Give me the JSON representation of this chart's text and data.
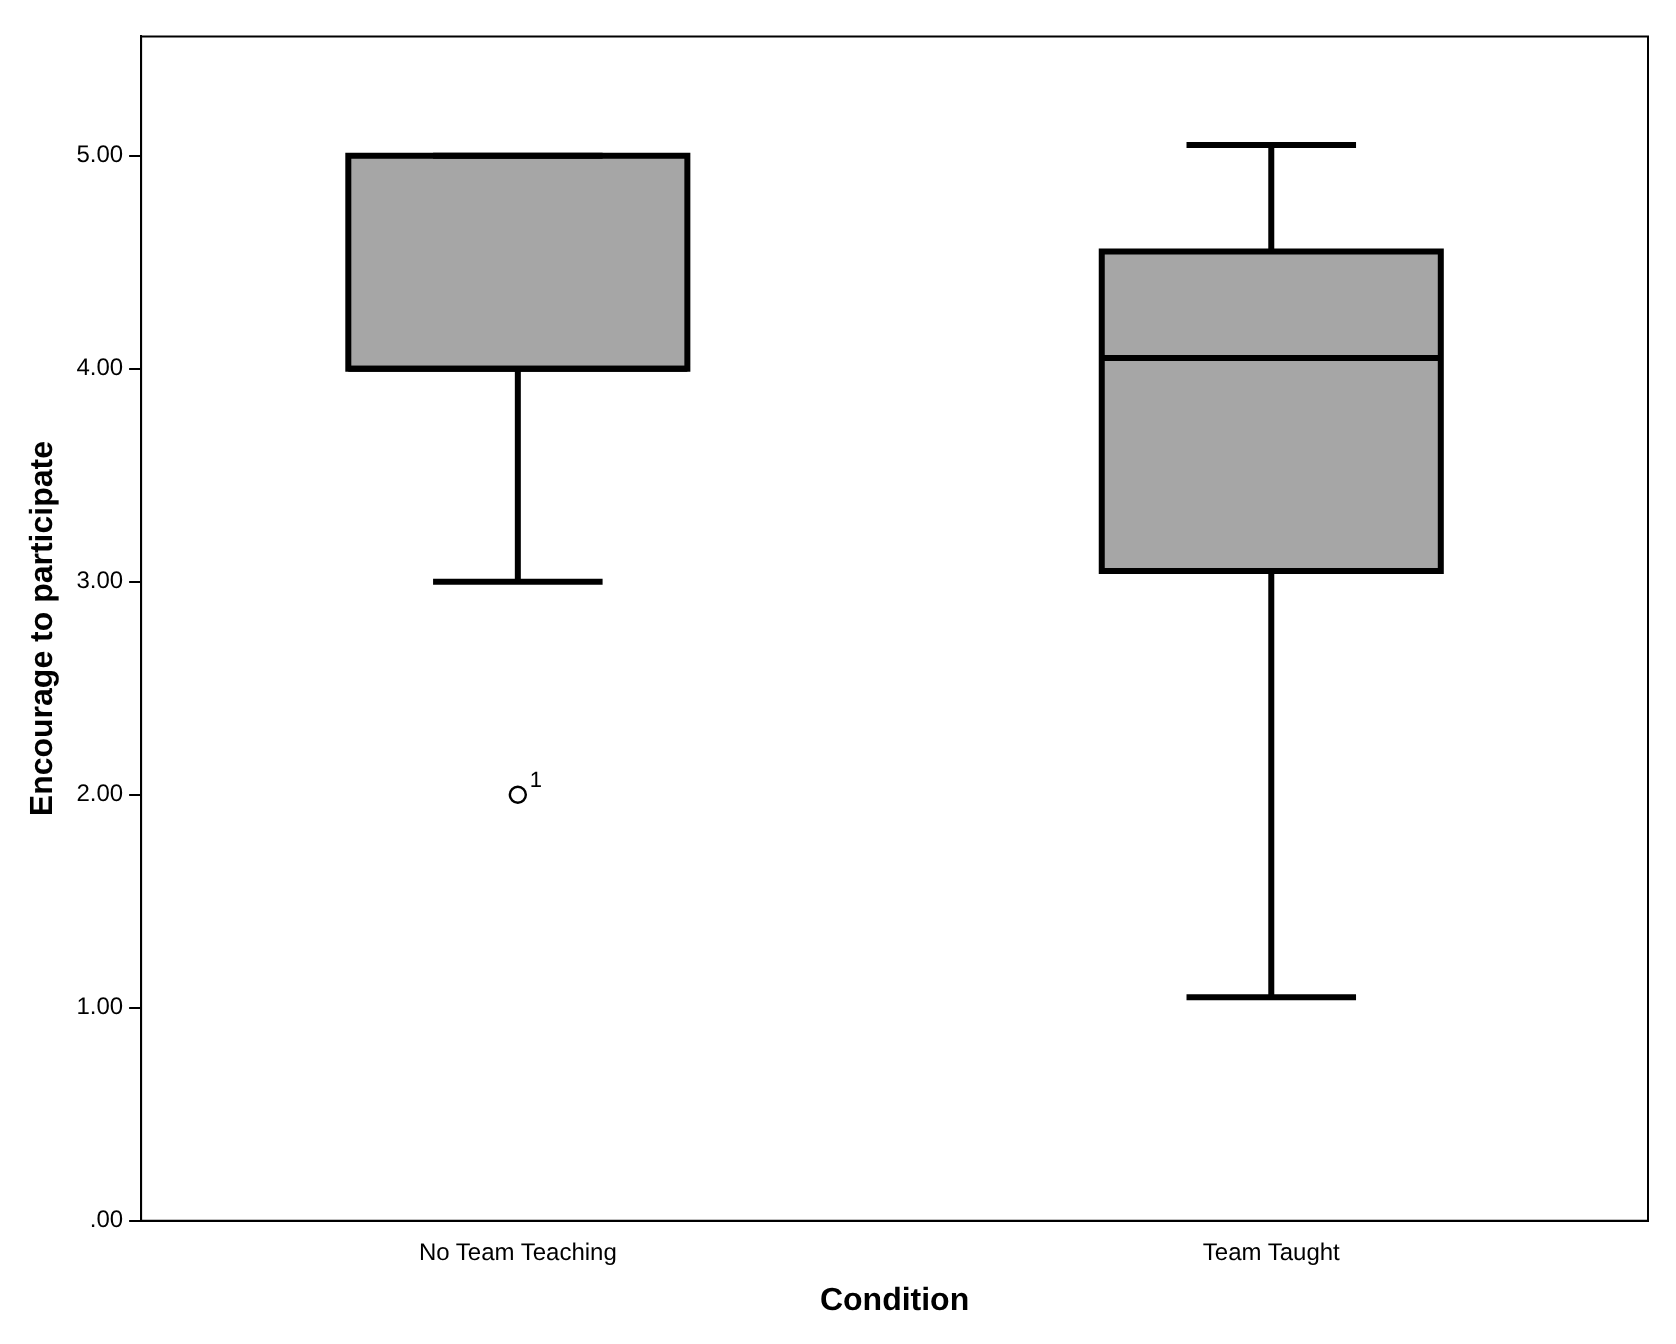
{
  "chart_data": {
    "type": "box",
    "xlabel": "Condition",
    "ylabel": "Encourage to participate",
    "categories": [
      "No Team Teaching",
      "Team Taught"
    ],
    "boxes": [
      {
        "low": 3,
        "q1": 4,
        "median": 4,
        "q3": 5,
        "high": 5,
        "outliers": [
          2
        ]
      },
      {
        "low": 1.05,
        "q1": 3.05,
        "median": 4.05,
        "q3": 4.55,
        "high": 5.05
      }
    ],
    "color": "#a6a6a6",
    "ylim": [
      0,
      5.56
    ],
    "yticks": [
      {
        "value": 0,
        "label": ".00"
      },
      {
        "value": 1,
        "label": "1.00"
      },
      {
        "value": 2,
        "label": "2.00"
      },
      {
        "value": 3,
        "label": "3.00"
      },
      {
        "value": 4,
        "label": "4.00"
      },
      {
        "value": 5,
        "label": "5.00"
      }
    ],
    "grid": false,
    "legend": false,
    "annotations": [
      "1"
    ]
  }
}
